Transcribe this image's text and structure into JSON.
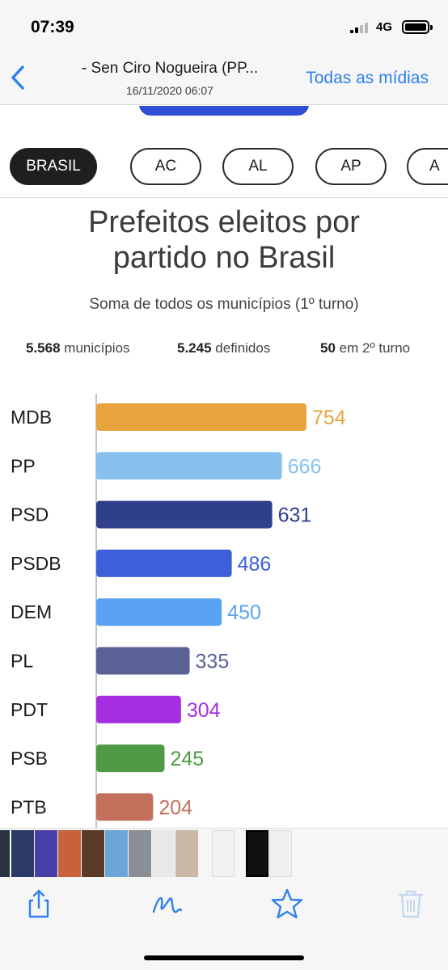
{
  "status_bar": {
    "time": "07:39",
    "network": "4G"
  },
  "nav": {
    "title": "- Sen Ciro Nogueira (PP...",
    "subtitle": "16/11/2020 06:07",
    "action": "Todas as mídias"
  },
  "filters": [
    "BRASIL",
    "AC",
    "AL",
    "AP",
    "A"
  ],
  "chart": {
    "title_line1": "Prefeitos eleitos por",
    "title_line2": "partido no Brasil",
    "subtitle": "Soma de todos os municípios (1º turno)",
    "stats": {
      "municipios_value": "5.568",
      "municipios_label": "municípios",
      "definidos_value": "5.245",
      "definidos_label": "definidos",
      "segundo_value": "50",
      "segundo_label": "em 2º turno"
    }
  },
  "chart_data": {
    "type": "bar",
    "orientation": "horizontal",
    "categories": [
      "MDB",
      "PP",
      "PSD",
      "PSDB",
      "DEM",
      "PL",
      "PDT",
      "PSB",
      "PTB"
    ],
    "values": [
      754,
      666,
      631,
      486,
      450,
      335,
      304,
      245,
      204
    ],
    "colors": [
      "#e8a33d",
      "#86c1f0",
      "#2f3f8c",
      "#3d5fd9",
      "#5aa3f2",
      "#5b6296",
      "#a52ee0",
      "#4f9a45",
      "#c2705c"
    ],
    "title": "Prefeitos eleitos por partido no Brasil",
    "subtitle": "Soma de todos os municípios (1º turno)"
  },
  "toolbar": {
    "icons": [
      "share-icon",
      "markup-icon",
      "favorite-star-icon",
      "trash-icon"
    ]
  }
}
